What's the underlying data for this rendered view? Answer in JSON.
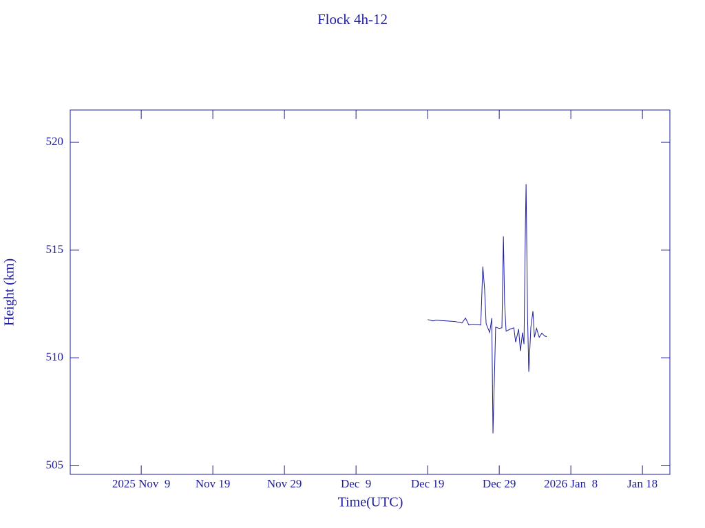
{
  "chart_data": {
    "type": "line",
    "title": "Flock 4h-12",
    "xlabel": "Time(UTC)",
    "ylabel": "Height (km)",
    "x": [
      "2025-12-19T00:00",
      "2025-12-19T18:00",
      "2025-12-20T04:00",
      "2025-12-22T20:00",
      "2025-12-23T19:00",
      "2025-12-24T07:00",
      "2025-12-24T18:00",
      "2025-12-25T06:00",
      "2025-12-26T10:00",
      "2025-12-26T17:00",
      "2025-12-26T23:00",
      "2025-12-27T04:00",
      "2025-12-27T16:00",
      "2025-12-27T23:00",
      "2025-12-28T03:00",
      "2025-12-28T08:00",
      "2025-12-28T12:00",
      "2025-12-29T00:00",
      "2025-12-29T09:00",
      "2025-12-29T14:00",
      "2025-12-29T18:00",
      "2025-12-29T23:00",
      "2025-12-30T13:00",
      "2025-12-31T01:00",
      "2025-12-31T07:00",
      "2025-12-31T17:00",
      "2025-12-31T23:00",
      "2026-01-01T06:00",
      "2026-01-01T11:00",
      "2026-01-01T16:00",
      "2026-01-01T18:00",
      "2026-01-01T23:00",
      "2026-01-02T03:00",
      "2026-01-02T10:00",
      "2026-01-02T17:00",
      "2026-01-02T22:00",
      "2026-01-03T05:00",
      "2026-01-03T14:00",
      "2026-01-03T23:00",
      "2026-01-04T08:00",
      "2026-01-04T15:00"
    ],
    "series": [
      {
        "name": "Height",
        "color": "#1c1c9c",
        "values": [
          511.78,
          511.72,
          511.75,
          511.69,
          511.62,
          511.85,
          511.53,
          511.56,
          511.53,
          514.24,
          513.18,
          511.59,
          511.18,
          511.85,
          506.5,
          509.2,
          511.43,
          511.37,
          511.4,
          515.64,
          512.55,
          511.24,
          511.34,
          511.4,
          510.73,
          511.34,
          510.32,
          511.18,
          510.64,
          516.44,
          518.06,
          511.91,
          509.36,
          511.43,
          512.17,
          510.96,
          511.37,
          510.96,
          511.15,
          511.02,
          510.99
        ]
      }
    ],
    "xlim": [
      "2025-10-30T02:00",
      "2026-01-21T20:00"
    ],
    "xticks": [
      {
        "value": "2025-11-09T00:00",
        "label": "2025 Nov  9"
      },
      {
        "value": "2025-11-19T00:00",
        "label": "Nov 19"
      },
      {
        "value": "2025-11-29T00:00",
        "label": "Nov 29"
      },
      {
        "value": "2025-12-09T00:00",
        "label": "Dec  9"
      },
      {
        "value": "2025-12-19T00:00",
        "label": "Dec 19"
      },
      {
        "value": "2025-12-29T00:00",
        "label": "Dec 29"
      },
      {
        "value": "2026-01-08T00:00",
        "label": "2026 Jan  8"
      },
      {
        "value": "2026-01-18T00:00",
        "label": "Jan 18"
      }
    ],
    "ylim": [
      504.6,
      521.5
    ],
    "yticks": [
      505,
      510,
      515,
      520
    ]
  }
}
